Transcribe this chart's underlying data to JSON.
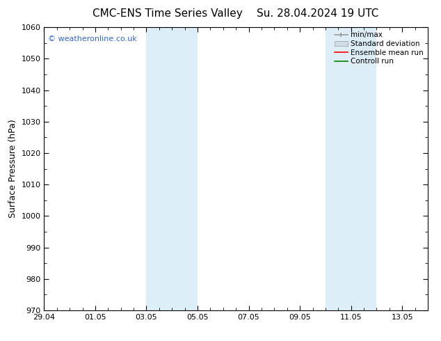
{
  "title_left": "CMC-ENS Time Series Valley",
  "title_right": "Su. 28.04.2024 19 UTC",
  "ylabel": "Surface Pressure (hPa)",
  "ylim": [
    970,
    1060
  ],
  "yticks": [
    970,
    980,
    990,
    1000,
    1010,
    1020,
    1030,
    1040,
    1050,
    1060
  ],
  "xlim_start": 0.0,
  "xlim_end": 15.0,
  "xtick_positions": [
    0,
    2,
    4,
    6,
    8,
    10,
    12,
    14
  ],
  "xtick_labels": [
    "29.04",
    "01.05",
    "03.05",
    "05.05",
    "07.05",
    "09.05",
    "11.05",
    "13.05"
  ],
  "shaded_bands": [
    {
      "x_start": 4.0,
      "x_end": 4.5,
      "color": "#ddeef8"
    },
    {
      "x_start": 4.5,
      "x_end": 6.0,
      "color": "#ddeef8"
    },
    {
      "x_start": 11.0,
      "x_end": 11.5,
      "color": "#ddeef8"
    },
    {
      "x_start": 11.5,
      "x_end": 13.0,
      "color": "#ddeef8"
    }
  ],
  "watermark_text": "© weatheronline.co.uk",
  "watermark_color": "#3366cc",
  "background_color": "#ffffff",
  "plot_bg_color": "#ffffff",
  "legend_labels": [
    "min/max",
    "Standard deviation",
    "Ensemble mean run",
    "Controll run"
  ],
  "legend_colors_line": [
    "#999999",
    "#cccccc",
    "#ff0000",
    "#008000"
  ],
  "title_fontsize": 11,
  "axis_label_fontsize": 9,
  "tick_font_size": 8,
  "legend_fontsize": 7.5
}
